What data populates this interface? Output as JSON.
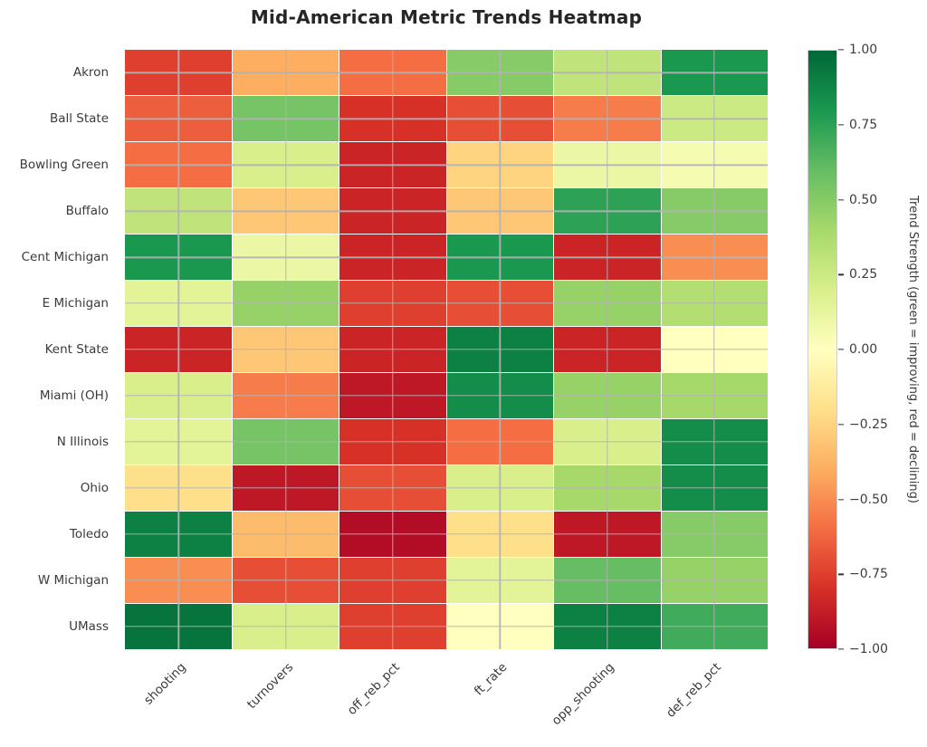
{
  "title": "Mid-American Metric Trends Heatmap",
  "colorbar": {
    "label": "Trend Strength (green = improving, red = declining)",
    "ticks": [
      "1.00",
      "0.75",
      "0.50",
      "0.25",
      "0.00",
      "−0.25",
      "−0.50",
      "−0.75",
      "−1.00"
    ],
    "min": -1.0,
    "max": 1.0
  },
  "chart_data": {
    "type": "heatmap",
    "title": "Mid-American Metric Trends Heatmap",
    "rows": [
      "Akron",
      "Ball State",
      "Bowling Green",
      "Buffalo",
      "Cent Michigan",
      "E Michigan",
      "Kent State",
      "Miami (OH)",
      "N Illinois",
      "Ohio",
      "Toledo",
      "W Michigan",
      "UMass"
    ],
    "columns": [
      "shooting",
      "turnovers",
      "off_reb_pct",
      "ft_rate",
      "opp_shooting",
      "def_reb_pct"
    ],
    "values": [
      [
        -0.75,
        -0.4,
        -0.6,
        0.5,
        0.3,
        0.8
      ],
      [
        -0.65,
        0.55,
        -0.8,
        -0.7,
        -0.55,
        0.25
      ],
      [
        -0.6,
        0.2,
        -0.85,
        -0.25,
        0.1,
        0.05
      ],
      [
        0.3,
        -0.3,
        -0.85,
        -0.3,
        0.75,
        0.5
      ],
      [
        0.8,
        0.1,
        -0.85,
        0.8,
        -0.85,
        -0.5
      ],
      [
        0.15,
        0.45,
        -0.75,
        -0.7,
        0.45,
        0.35
      ],
      [
        -0.85,
        -0.3,
        -0.85,
        0.9,
        -0.85,
        0.0
      ],
      [
        0.2,
        -0.55,
        -0.9,
        0.85,
        0.45,
        0.4
      ],
      [
        0.15,
        0.55,
        -0.8,
        -0.6,
        0.2,
        0.85
      ],
      [
        -0.2,
        -0.9,
        -0.7,
        0.2,
        0.4,
        0.85
      ],
      [
        0.9,
        -0.35,
        -0.95,
        -0.2,
        -0.9,
        0.5
      ],
      [
        -0.5,
        -0.7,
        -0.75,
        0.15,
        0.6,
        0.45
      ],
      [
        0.95,
        0.2,
        -0.75,
        0.0,
        0.9,
        0.7
      ]
    ],
    "vmin": -1.0,
    "vmax": 1.0,
    "colormap": {
      "name": "RdYlGn",
      "anchors": [
        "#a50026",
        "#d73027",
        "#f46d43",
        "#fdae61",
        "#fee08b",
        "#ffffbf",
        "#d9ef8b",
        "#a6d96a",
        "#66bd63",
        "#1a9850",
        "#006837"
      ]
    },
    "grid": true,
    "gridline_color": "#b2b2b2",
    "cell_border_color": "#ffffff",
    "legend_position": "right"
  }
}
